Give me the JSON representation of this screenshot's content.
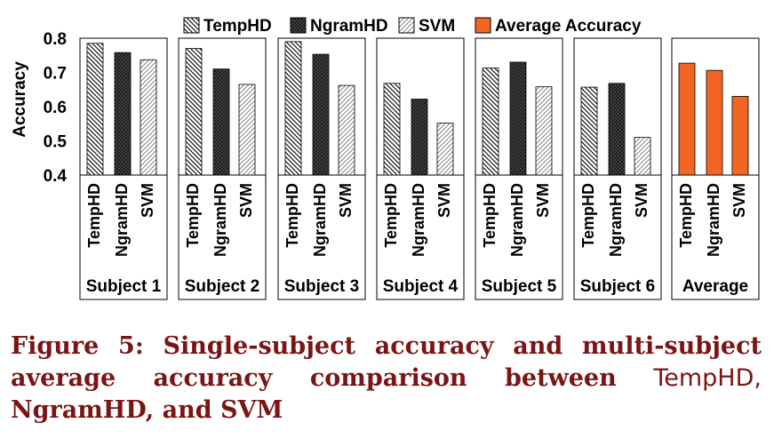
{
  "chart_data": {
    "type": "bar",
    "ylabel": "Accuracy",
    "ylim": [
      0.4,
      0.8
    ],
    "yticks": [
      "0.4",
      "0.5",
      "0.6",
      "0.7",
      "0.8"
    ],
    "bar_labels": [
      "TempHD",
      "NgramHD",
      "SVM"
    ],
    "legend": {
      "placement": "top",
      "entries": [
        {
          "name": "TempHD",
          "pattern": "diagonal-down"
        },
        {
          "name": "NgramHD",
          "pattern": "dense-dark"
        },
        {
          "name": "SVM",
          "pattern": "diagonal-up-light"
        },
        {
          "name": "Average Accuracy",
          "color": "#f26522"
        }
      ]
    },
    "groups": [
      {
        "name": "Subject 1",
        "values": [
          0.785,
          0.758,
          0.737
        ]
      },
      {
        "name": "Subject 2",
        "values": [
          0.77,
          0.71,
          0.665
        ]
      },
      {
        "name": "Subject 3",
        "values": [
          0.79,
          0.753,
          0.662
        ]
      },
      {
        "name": "Subject 4",
        "values": [
          0.668,
          0.622,
          0.552
        ]
      },
      {
        "name": "Subject 5",
        "values": [
          0.713,
          0.73,
          0.658
        ]
      },
      {
        "name": "Subject 6",
        "values": [
          0.657,
          0.668,
          0.51
        ]
      },
      {
        "name": "Average",
        "values": [
          0.727,
          0.706,
          0.63
        ],
        "fill": "#f26522"
      }
    ]
  },
  "caption": {
    "line1": "Figure 5: Single-subject accuracy and multi-subject",
    "line2_lead": "average accuracy comparison between",
    "line2_sys": "TempHD,",
    "line3": "NgramHD, and SVM"
  }
}
